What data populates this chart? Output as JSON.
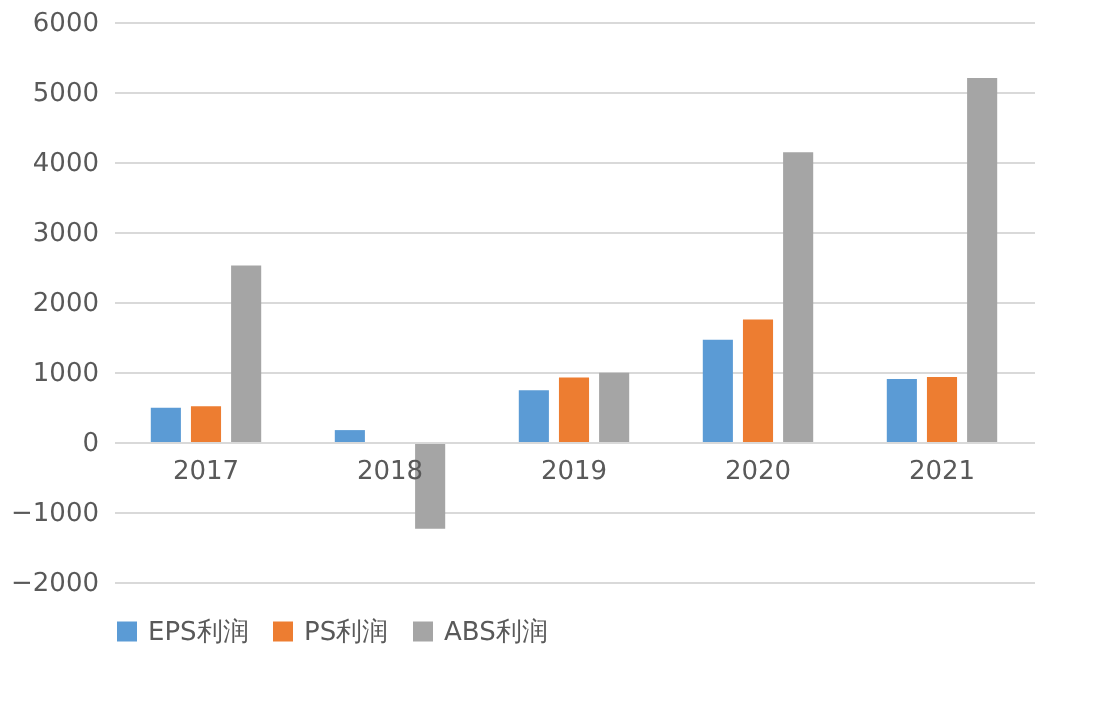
{
  "chart_data": {
    "type": "bar",
    "categories": [
      "2017",
      "2018",
      "2019",
      "2020",
      "2021"
    ],
    "series": [
      {
        "name": "EPS利润",
        "color": "#5b9bd5",
        "values": [
          490,
          170,
          740,
          1460,
          900
        ]
      },
      {
        "name": "PS利润",
        "color": "#ed7d31",
        "values": [
          510,
          0,
          920,
          1750,
          930
        ]
      },
      {
        "name": "ABS利润",
        "color": "#a5a5a5",
        "values": [
          2520,
          -1240,
          990,
          4140,
          5200
        ]
      }
    ],
    "ylim": [
      -2000,
      6000
    ],
    "yticks": [
      -2000,
      -1000,
      0,
      1000,
      2000,
      3000,
      4000,
      5000,
      6000
    ],
    "grid": "y",
    "legend": "bottom"
  }
}
